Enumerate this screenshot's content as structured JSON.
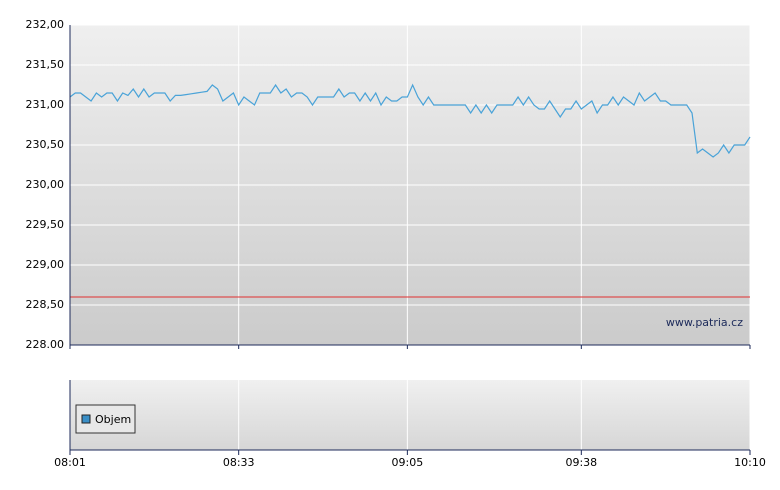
{
  "chart_data": {
    "type": "line",
    "x": [
      "08:01",
      "08:02",
      "08:03",
      "08:04",
      "08:05",
      "08:06",
      "08:07",
      "08:08",
      "08:09",
      "08:10",
      "08:11",
      "08:12",
      "08:13",
      "08:14",
      "08:15",
      "08:16",
      "08:17",
      "08:18",
      "08:19",
      "08:20",
      "08:21",
      "08:22",
      "08:23",
      "08:24",
      "08:25",
      "08:26",
      "08:27",
      "08:28",
      "08:29",
      "08:30",
      "08:31",
      "08:32",
      "08:33",
      "08:34",
      "08:35",
      "08:36",
      "08:37",
      "08:38",
      "08:39",
      "08:40",
      "08:41",
      "08:42",
      "08:43",
      "08:44",
      "08:45",
      "08:46",
      "08:47",
      "08:48",
      "08:49",
      "08:50",
      "08:51",
      "08:52",
      "08:53",
      "08:54",
      "08:55",
      "08:56",
      "08:57",
      "08:58",
      "08:59",
      "09:00",
      "09:01",
      "09:02",
      "09:03",
      "09:04",
      "09:05",
      "09:06",
      "09:07",
      "09:08",
      "09:09",
      "09:10",
      "09:11",
      "09:12",
      "09:13",
      "09:14",
      "09:15",
      "09:16",
      "09:17",
      "09:18",
      "09:19",
      "09:20",
      "09:21",
      "09:22",
      "09:23",
      "09:24",
      "09:25",
      "09:26",
      "09:27",
      "09:28",
      "09:29",
      "09:30",
      "09:31",
      "09:32",
      "09:33",
      "09:34",
      "09:35",
      "09:36",
      "09:37",
      "09:38",
      "09:39",
      "09:40",
      "09:41",
      "09:42",
      "09:43",
      "09:44",
      "09:45",
      "09:46",
      "09:47",
      "09:48",
      "09:49",
      "09:50",
      "09:51",
      "09:52",
      "09:53",
      "09:54",
      "09:55",
      "09:56",
      "09:57",
      "09:58",
      "09:59",
      "10:00",
      "10:01",
      "10:02",
      "10:03",
      "10:04",
      "10:05",
      "10:06",
      "10:07",
      "10:08",
      "10:09",
      "10:10"
    ],
    "series": [
      {
        "color": "#4aa3d8",
        "values": [
          231.1,
          231.15,
          231.15,
          231.1,
          231.05,
          231.15,
          231.1,
          231.15,
          231.15,
          231.05,
          231.15,
          231.12,
          231.2,
          231.1,
          231.2,
          231.1,
          231.15,
          231.15,
          231.15,
          231.05,
          231.12,
          231.12,
          231.13,
          231.14,
          231.15,
          231.16,
          231.17,
          231.25,
          231.2,
          231.05,
          231.1,
          231.15,
          231.0,
          231.1,
          231.05,
          231.0,
          231.15,
          231.15,
          231.15,
          231.25,
          231.15,
          231.2,
          231.1,
          231.15,
          231.15,
          231.1,
          231.0,
          231.1,
          231.1,
          231.1,
          231.1,
          231.2,
          231.1,
          231.15,
          231.15,
          231.05,
          231.15,
          231.05,
          231.15,
          231.0,
          231.1,
          231.05,
          231.05,
          231.1,
          231.1,
          231.25,
          231.1,
          231.0,
          231.1,
          231.0,
          231.0,
          231.0,
          231.0,
          231.0,
          231.0,
          231.0,
          230.9,
          231.0,
          230.9,
          231.0,
          230.9,
          231.0,
          231.0,
          231.0,
          231.0,
          231.1,
          231.0,
          231.1,
          231.0,
          230.95,
          230.95,
          231.05,
          230.95,
          230.85,
          230.95,
          230.95,
          231.05,
          230.95,
          231.0,
          231.05,
          230.9,
          231.0,
          231.0,
          231.1,
          231.0,
          231.1,
          231.05,
          231.0,
          231.15,
          231.05,
          231.1,
          231.15,
          231.05,
          231.05,
          231.0,
          231.0,
          231.0,
          231.0,
          230.9,
          230.4,
          230.45,
          230.4,
          230.35,
          230.4,
          230.5,
          230.4,
          230.5,
          230.5,
          230.5,
          230.6
        ]
      }
    ],
    "xlim": [
      "08:01",
      "10:10"
    ],
    "xticks": [
      "08:01",
      "08:33",
      "09:05",
      "09:38",
      "10:10"
    ],
    "ylim": [
      228,
      232
    ],
    "yticks": [
      {
        "value": 228,
        "label": "228.00"
      },
      {
        "value": 228.5,
        "label": "228,50"
      },
      {
        "value": 229,
        "label": "229,00"
      },
      {
        "value": 229.5,
        "label": "229,50"
      },
      {
        "value": 230,
        "label": "230,00"
      },
      {
        "value": 230.5,
        "label": "230,50"
      },
      {
        "value": 231,
        "label": "231,00"
      },
      {
        "value": 231.5,
        "label": "231,50"
      },
      {
        "value": 232,
        "label": "232,00"
      }
    ],
    "reference_value": 228.6,
    "reference_color": "#e03030",
    "grid": true,
    "watermark": "www.patria.cz",
    "volume_legend": "Objem",
    "volume_color": "#3a8fc7"
  }
}
